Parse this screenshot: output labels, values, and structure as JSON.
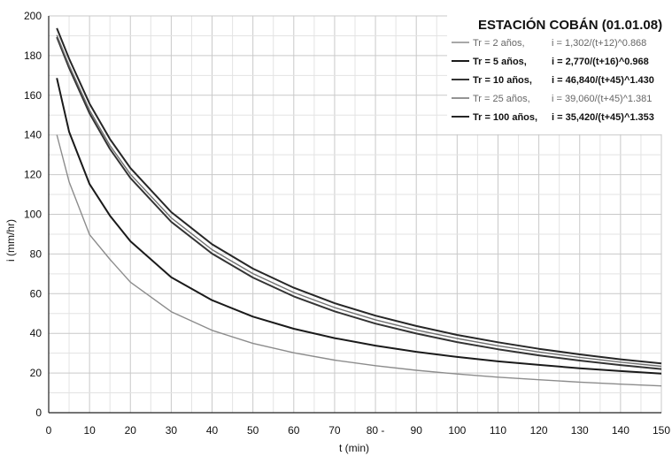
{
  "chart_data": {
    "type": "line",
    "title": "ESTACIÓN COBÁN (01.01.08)",
    "xlabel": "t (min)",
    "ylabel": "i (mm/hr)",
    "xlim": [
      0,
      150
    ],
    "ylim": [
      0,
      200
    ],
    "x_ticks": [
      "0",
      "10",
      "20",
      "30",
      "40",
      "50",
      "60",
      "70",
      "80 -",
      "90",
      "100",
      "110",
      "120",
      "130",
      "140",
      "150"
    ],
    "y_ticks": [
      "0",
      "20",
      "40",
      "60",
      "80",
      "100",
      "120",
      "140",
      "160",
      "180",
      "200"
    ],
    "grid": true,
    "legend_position": "top-right",
    "x": [
      2,
      5,
      10,
      15,
      20,
      30,
      40,
      50,
      60,
      70,
      80,
      90,
      100,
      110,
      120,
      130,
      140,
      150
    ],
    "series": [
      {
        "name": "Tr = 2 años,",
        "equation": "i = 1,302/(t+12)^0.868",
        "color": "#8c8c8c",
        "bold": false,
        "values": [
          140.1,
          116.3,
          89.8,
          77.3,
          65.8,
          50.9,
          41.5,
          34.9,
          30.2,
          26.5,
          23.7,
          21.4,
          19.5,
          17.9,
          16.6,
          15.4,
          14.4,
          13.5
        ]
      },
      {
        "name": "Tr = 5 años,",
        "equation": "i = 2,770/(t+16)^0.968",
        "color": "#1a1a1a",
        "bold": true,
        "values": [
          168.7,
          141.5,
          115.3,
          99.3,
          86.4,
          68.3,
          56.7,
          48.4,
          42.3,
          37.6,
          33.8,
          30.7,
          28.1,
          25.9,
          24.1,
          22.4,
          21.0,
          19.7
        ]
      },
      {
        "name": "Tr = 10 años,",
        "equation": "i = 46,840/(t+45)^1.430",
        "color": "#333333",
        "bold": true,
        "values": [
          189.3,
          173.7,
          150.9,
          132.9,
          118.3,
          96.2,
          80.2,
          68.1,
          58.6,
          51.1,
          44.9,
          39.9,
          35.6,
          32.0,
          28.9,
          26.3,
          24.0,
          22.0
        ]
      },
      {
        "name": "Tr = 25 años,",
        "equation": "i = 39,060/(t+45)^1.381",
        "color": "#707070",
        "bold": false,
        "values": [
          190.4,
          175.0,
          152.5,
          134.7,
          120.2,
          98.2,
          82.2,
          70.1,
          60.6,
          53.0,
          46.8,
          41.7,
          37.4,
          33.7,
          30.6,
          27.9,
          25.5,
          23.4
        ]
      },
      {
        "name": "Tr = 100 años,",
        "equation": "i = 35,420/(t+45)^1.353",
        "color": "#262626",
        "bold": true,
        "values": [
          193.8,
          178.4,
          155.8,
          137.9,
          123.3,
          101.1,
          84.9,
          72.6,
          63.0,
          55.2,
          48.9,
          43.7,
          39.2,
          35.5,
          32.2,
          29.4,
          26.9,
          24.8
        ]
      }
    ]
  }
}
